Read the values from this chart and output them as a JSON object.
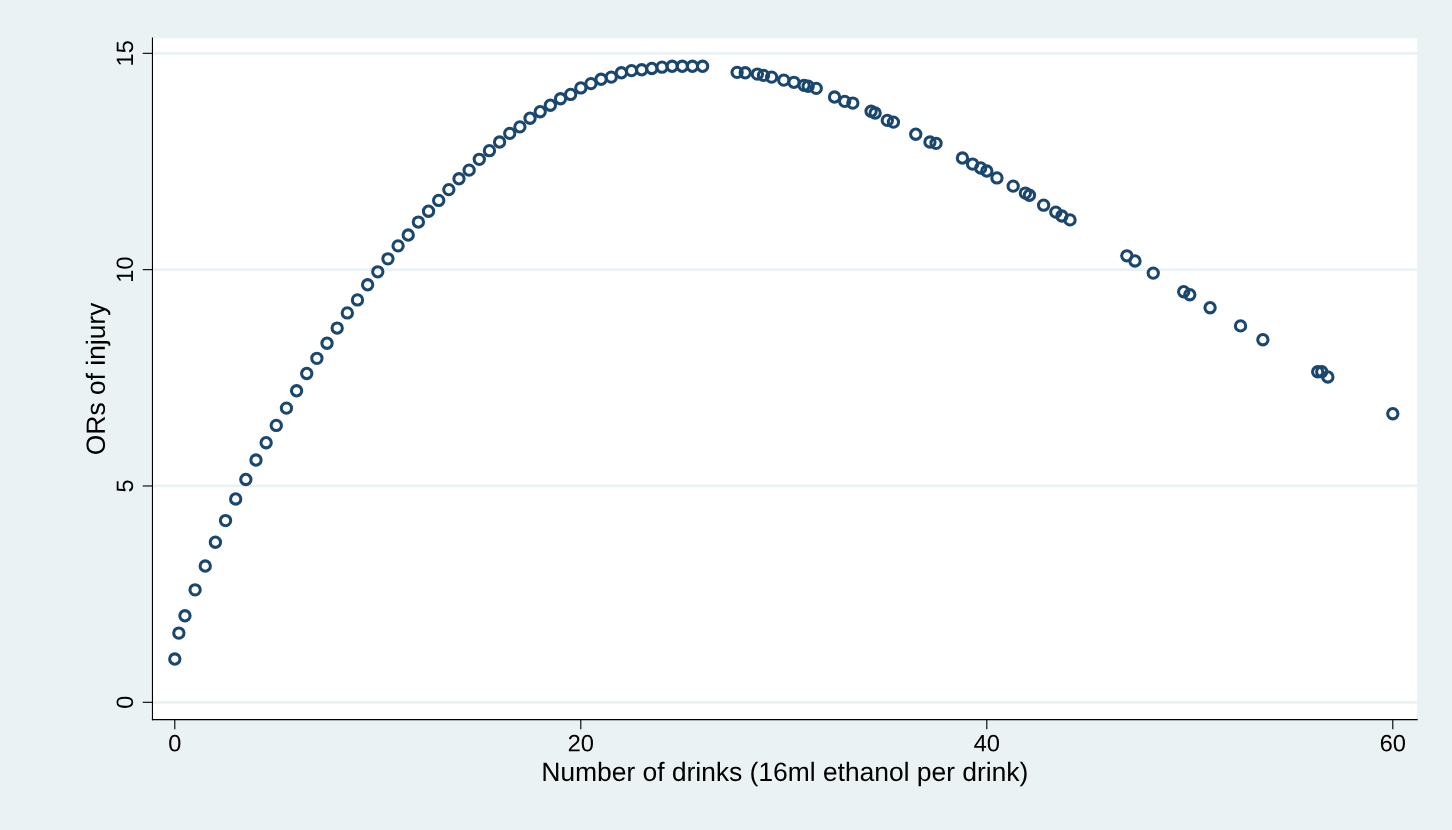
{
  "chart_data": {
    "type": "scatter",
    "xlabel": "Number of drinks (16ml ethanol per drink)",
    "ylabel": "ORs of injury",
    "x": [
      0,
      0.2,
      0.5,
      1,
      1.5,
      2,
      2.5,
      3,
      3.5,
      4,
      4.5,
      5,
      5.5,
      6,
      6.5,
      7,
      7.5,
      8,
      8.5,
      9,
      9.5,
      10,
      10.5,
      11,
      11.5,
      12,
      12.5,
      13,
      13.5,
      14,
      14.5,
      15,
      15.5,
      16,
      16.5,
      17,
      17.5,
      18,
      18.5,
      19,
      19.5,
      20,
      20.5,
      21,
      21.5,
      22,
      22.5,
      23,
      23.5,
      24,
      24.5,
      25,
      25.5,
      26,
      27.7,
      28.1,
      28.7,
      29.0,
      29.4,
      30.0,
      30.5,
      31.0,
      31.2,
      31.6,
      32.5,
      33.0,
      33.4,
      34.3,
      34.5,
      35.1,
      35.4,
      36.5,
      37.2,
      37.5,
      38.8,
      39.3,
      39.7,
      40.0,
      40.5,
      41.3,
      41.9,
      42.1,
      42.8,
      43.4,
      43.7,
      44.1,
      46.9,
      47.3,
      48.2,
      49.7,
      50.0,
      51.0,
      52.5,
      53.6,
      56.3,
      56.5,
      56.8,
      60.0
    ],
    "values": [
      1.0,
      1.6,
      2.0,
      2.6,
      3.15,
      3.7,
      4.2,
      4.7,
      5.15,
      5.6,
      6.0,
      6.4,
      6.8,
      7.2,
      7.6,
      7.95,
      8.3,
      8.65,
      9.0,
      9.3,
      9.65,
      9.95,
      10.25,
      10.55,
      10.8,
      11.1,
      11.35,
      11.6,
      11.85,
      12.1,
      12.3,
      12.55,
      12.75,
      12.95,
      13.15,
      13.3,
      13.5,
      13.65,
      13.8,
      13.95,
      14.05,
      14.2,
      14.3,
      14.4,
      14.45,
      14.55,
      14.6,
      14.62,
      14.65,
      14.68,
      14.7,
      14.7,
      14.7,
      14.7,
      14.56,
      14.55,
      14.52,
      14.49,
      14.45,
      14.38,
      14.33,
      14.26,
      14.24,
      14.19,
      13.99,
      13.89,
      13.85,
      13.66,
      13.62,
      13.45,
      13.41,
      13.13,
      12.95,
      12.92,
      12.58,
      12.44,
      12.35,
      12.28,
      12.12,
      11.93,
      11.77,
      11.72,
      11.49,
      11.33,
      11.24,
      11.15,
      10.32,
      10.2,
      9.92,
      9.49,
      9.42,
      9.12,
      8.7,
      8.38,
      7.64,
      7.64,
      7.52,
      6.67
    ],
    "color": "#1a476f",
    "marker": "circle",
    "grid": "y",
    "xlim": [
      -1.1,
      61.2
    ],
    "ylim": [
      -0.4,
      15.35
    ],
    "xticks": [
      0,
      20,
      40,
      60
    ],
    "yticks": [
      0,
      5,
      10,
      15
    ]
  }
}
